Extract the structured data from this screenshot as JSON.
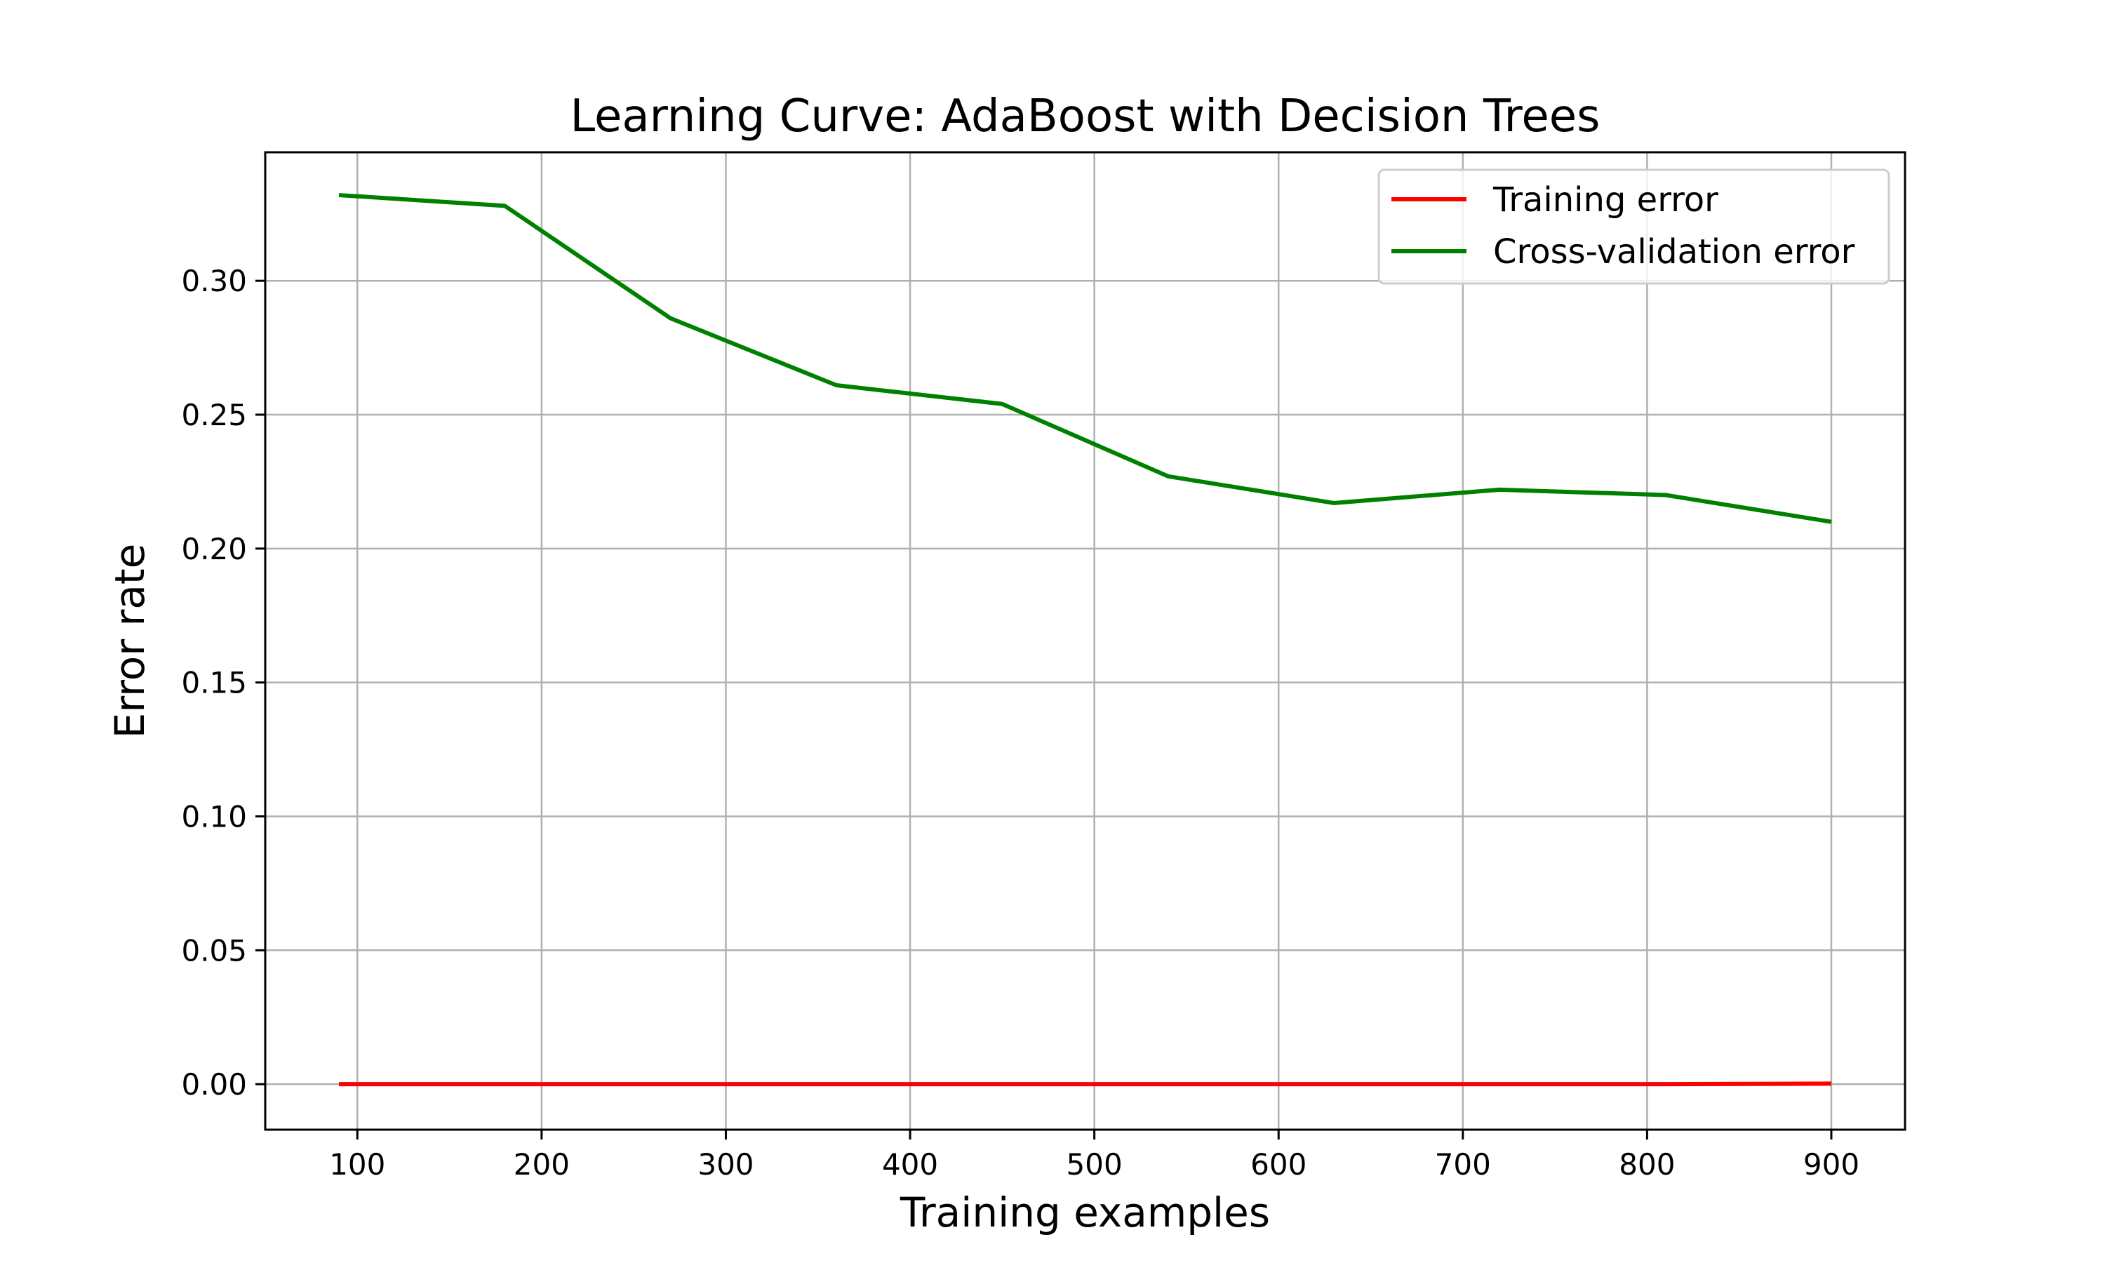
{
  "colors": {
    "background": "#ffffff",
    "grid": "#b0b0b0",
    "axes": "#000000",
    "legend_border": "#cccccc"
  },
  "chart_data": {
    "type": "line",
    "title": "Learning Curve: AdaBoost with Decision Trees",
    "xlabel": "Training examples",
    "ylabel": "Error rate",
    "xlim": [
      50,
      940
    ],
    "ylim": [
      -0.017,
      0.348
    ],
    "xticks": [
      100,
      200,
      300,
      400,
      500,
      600,
      700,
      800,
      900
    ],
    "xtick_labels": [
      "100",
      "200",
      "300",
      "400",
      "500",
      "600",
      "700",
      "800",
      "900"
    ],
    "yticks": [
      0.0,
      0.05,
      0.1,
      0.15,
      0.2,
      0.25,
      0.3
    ],
    "ytick_labels": [
      "0.00",
      "0.05",
      "0.10",
      "0.15",
      "0.20",
      "0.25",
      "0.30"
    ],
    "grid": true,
    "legend_position": "top-right",
    "x": [
      90,
      180,
      270,
      360,
      450,
      540,
      630,
      720,
      810,
      900
    ],
    "series": [
      {
        "name": "Training error",
        "color": "#ff0000",
        "values": [
          0.0,
          0.0,
          0.0,
          0.0,
          0.0,
          0.0,
          0.0,
          0.0,
          0.0,
          0.0002
        ]
      },
      {
        "name": "Cross-validation error",
        "color": "#008000",
        "values": [
          0.332,
          0.328,
          0.286,
          0.261,
          0.254,
          0.227,
          0.217,
          0.222,
          0.22,
          0.21
        ]
      }
    ]
  }
}
